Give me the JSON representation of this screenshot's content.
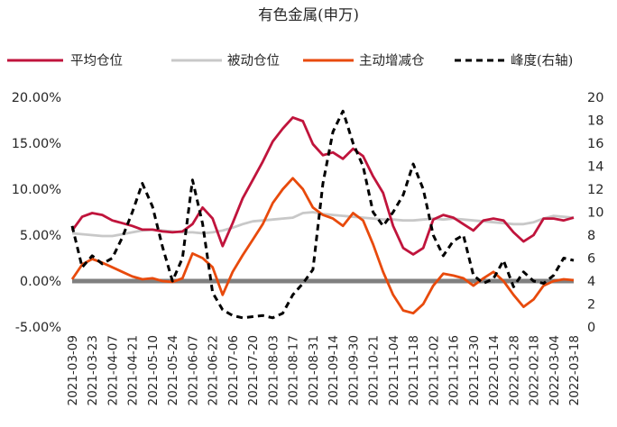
{
  "chart_data": {
    "type": "line",
    "title": "有色金属(申万)",
    "legend_position": "top",
    "grid": false,
    "left_axis": {
      "ylim": [
        -5,
        20
      ],
      "ticks": [
        "-5.00%",
        "0.00%",
        "5.00%",
        "10.00%",
        "15.00%",
        "20.00%"
      ]
    },
    "right_axis": {
      "ylim": [
        0,
        20
      ],
      "ticks": [
        "0",
        "2",
        "4",
        "6",
        "8",
        "10",
        "12",
        "14",
        "16",
        "18",
        "20"
      ]
    },
    "x_ticks": [
      "2021-03-09",
      "2021-03-23",
      "2021-04-07",
      "2021-04-21",
      "2021-05-10",
      "2021-05-24",
      "2021-06-07",
      "2021-06-22",
      "2021-07-06",
      "2021-07-20",
      "2021-08-03",
      "2021-08-17",
      "2021-08-31",
      "2021-09-14",
      "2021-09-30",
      "2021-10-21",
      "2021-11-04",
      "2021-11-18",
      "2021-12-02",
      "2021-12-16",
      "2021-12-30",
      "2022-01-14",
      "2022-01-28",
      "2022-02-18",
      "2022-03-04",
      "2022-03-18"
    ],
    "series": [
      {
        "name": "平均仓位",
        "color": "#C0143C",
        "axis": "left",
        "style": "solid",
        "x": [
          0,
          0.5,
          1,
          1.5,
          2,
          2.5,
          3,
          3.5,
          4,
          4.5,
          5,
          5.5,
          6,
          6.5,
          7,
          7.5,
          8,
          8.5,
          9,
          9.5,
          10,
          10.5,
          11,
          11.5,
          12,
          12.5,
          13,
          13.5,
          14,
          14.5,
          15,
          15.5,
          16,
          16.5,
          17,
          17.5,
          18,
          18.5,
          19,
          19.5,
          20,
          20.5,
          21,
          21.5,
          22,
          22.5,
          23,
          23.5,
          24,
          24.5,
          25
        ],
        "values": [
          5.5,
          7.0,
          7.4,
          7.2,
          6.6,
          6.3,
          6.0,
          5.6,
          5.6,
          5.4,
          5.3,
          5.4,
          6.2,
          8.0,
          6.8,
          3.8,
          6.3,
          9.0,
          11.0,
          13.0,
          15.2,
          16.6,
          17.8,
          17.4,
          14.9,
          13.7,
          14.0,
          13.3,
          14.4,
          13.6,
          11.4,
          9.6,
          6.0,
          3.6,
          2.9,
          3.6,
          6.7,
          7.2,
          6.9,
          6.2,
          5.5,
          6.6,
          6.8,
          6.6,
          5.3,
          4.3,
          5.0,
          6.8,
          6.8,
          6.6,
          6.9
        ]
      },
      {
        "name": "被动仓位",
        "color": "#C8C8C8",
        "axis": "left",
        "style": "solid",
        "x": [
          0,
          0.5,
          1,
          1.5,
          2,
          2.5,
          3,
          3.5,
          4,
          4.5,
          5,
          5.5,
          6,
          6.5,
          7,
          7.5,
          8,
          8.5,
          9,
          9.5,
          10,
          10.5,
          11,
          11.5,
          12,
          12.5,
          13,
          13.5,
          14,
          14.5,
          15,
          15.5,
          16,
          16.5,
          17,
          17.5,
          18,
          18.5,
          19,
          19.5,
          20,
          20.5,
          21,
          21.5,
          22,
          22.5,
          23,
          23.5,
          24,
          24.5,
          25
        ],
        "values": [
          5.2,
          5.1,
          5.0,
          4.9,
          4.9,
          5.1,
          5.3,
          5.5,
          5.6,
          5.5,
          5.4,
          5.3,
          5.3,
          5.2,
          5.3,
          5.5,
          5.8,
          6.2,
          6.5,
          6.6,
          6.7,
          6.8,
          6.9,
          7.4,
          7.5,
          7.3,
          7.2,
          7.1,
          7.0,
          6.9,
          6.8,
          6.7,
          6.7,
          6.6,
          6.6,
          6.7,
          6.8,
          6.7,
          6.8,
          6.7,
          6.6,
          6.5,
          6.4,
          6.3,
          6.2,
          6.2,
          6.4,
          6.8,
          7.1,
          7.0,
          6.9
        ]
      },
      {
        "name": "主动增减仓",
        "color": "#E84A0C",
        "axis": "left",
        "style": "solid",
        "x": [
          0,
          0.5,
          1,
          1.5,
          2,
          2.5,
          3,
          3.5,
          4,
          4.5,
          5,
          5.5,
          6,
          6.5,
          7,
          7.5,
          8,
          8.5,
          9,
          9.5,
          10,
          10.5,
          11,
          11.5,
          12,
          12.5,
          13,
          13.5,
          14,
          14.5,
          15,
          15.5,
          16,
          16.5,
          17,
          17.5,
          18,
          18.5,
          19,
          19.5,
          20,
          20.5,
          21,
          21.5,
          22,
          22.5,
          23,
          23.5,
          24,
          24.5,
          25
        ],
        "values": [
          0.2,
          1.8,
          2.4,
          2.0,
          1.5,
          1.0,
          0.5,
          0.2,
          0.3,
          0.0,
          -0.1,
          0.3,
          3.0,
          2.5,
          1.5,
          -1.5,
          1.0,
          2.8,
          4.5,
          6.2,
          8.5,
          10.0,
          11.2,
          10.0,
          8.0,
          7.2,
          6.8,
          6.0,
          7.4,
          6.6,
          4.0,
          1.0,
          -1.5,
          -3.2,
          -3.5,
          -2.5,
          -0.5,
          0.8,
          0.6,
          0.3,
          -0.5,
          0.3,
          1.0,
          0.0,
          -1.5,
          -2.8,
          -2.0,
          -0.5,
          0.0,
          0.2,
          0.1
        ]
      },
      {
        "name": "峰度(右轴)",
        "color": "#000000",
        "axis": "right",
        "style": "dashed",
        "x": [
          0,
          0.5,
          1,
          1.5,
          2,
          2.5,
          3,
          3.5,
          4,
          4.5,
          5,
          5.5,
          6,
          6.5,
          7,
          7.5,
          8,
          8.5,
          9,
          9.5,
          10,
          10.5,
          11,
          11.5,
          12,
          12.5,
          13,
          13.5,
          14,
          14.5,
          15,
          15.5,
          16,
          16.5,
          17,
          17.5,
          18,
          18.5,
          19,
          19.5,
          20,
          20.5,
          21,
          21.5,
          22,
          22.5,
          23,
          23.5,
          24,
          24.5,
          25
        ],
        "values": [
          8.8,
          5.2,
          6.2,
          5.5,
          6.0,
          7.8,
          10.0,
          12.5,
          10.5,
          7.0,
          4.0,
          6.0,
          12.8,
          9.0,
          3.0,
          1.5,
          1.0,
          0.8,
          0.9,
          1.0,
          0.8,
          1.2,
          2.8,
          3.8,
          5.0,
          12.5,
          17.0,
          18.8,
          16.0,
          14.0,
          10.0,
          8.8,
          10.0,
          11.5,
          14.2,
          12.0,
          8.0,
          6.2,
          7.5,
          8.0,
          4.5,
          3.8,
          4.2,
          5.8,
          3.5,
          4.8,
          4.0,
          3.8,
          4.5,
          6.0,
          5.8
        ]
      }
    ]
  }
}
